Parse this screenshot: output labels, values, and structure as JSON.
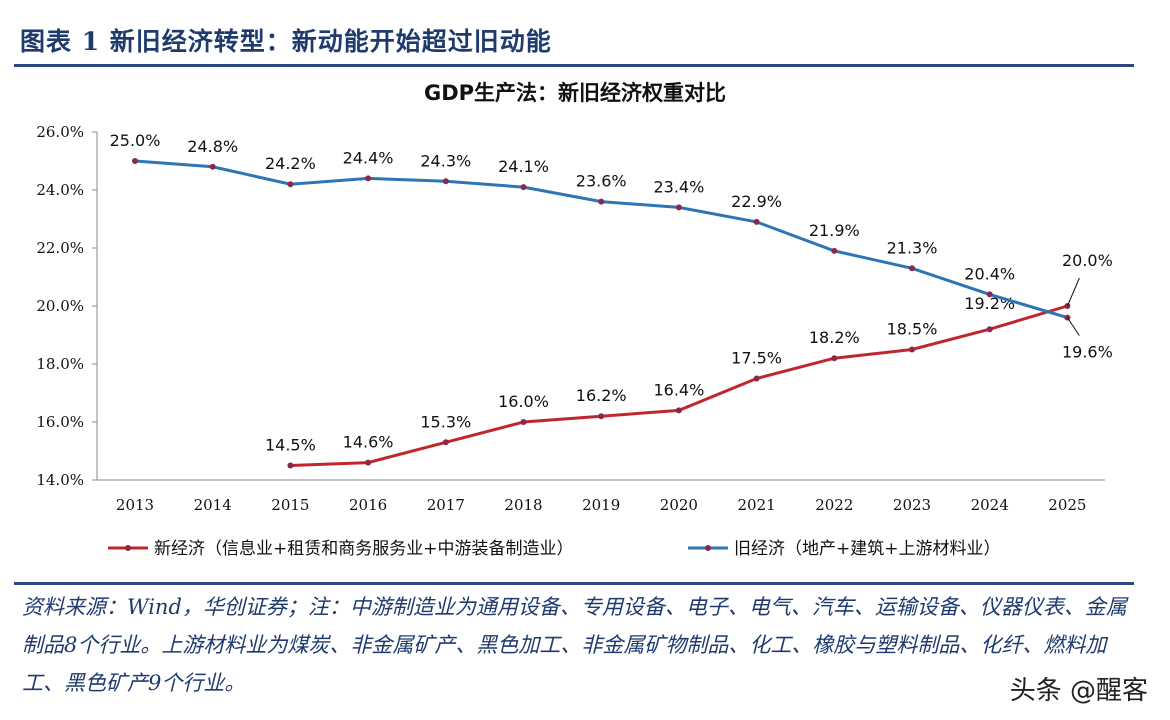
{
  "figure_title": "图表 1   新旧经济转型：新动能开始超过旧动能",
  "chart_data": {
    "type": "line",
    "title": "GDP生产法：新旧经济权重对比",
    "x": [
      "2013",
      "2014",
      "2015",
      "2016",
      "2017",
      "2018",
      "2019",
      "2020",
      "2021",
      "2022",
      "2023",
      "2024",
      "2025"
    ],
    "ylim": [
      14.0,
      26.0
    ],
    "yticks": [
      "14.0%",
      "16.0%",
      "18.0%",
      "20.0%",
      "22.0%",
      "24.0%",
      "26.0%"
    ],
    "grid": false,
    "legend_position": "bottom",
    "series": [
      {
        "name": "新经济（信息业+租赁和商务服务业+中游装备制造业）",
        "color": "#c0272d",
        "values": [
          null,
          null,
          14.5,
          14.6,
          15.3,
          16.0,
          16.2,
          16.4,
          17.5,
          18.2,
          18.5,
          19.2,
          20.0
        ],
        "labels": [
          null,
          null,
          "14.5%",
          "14.6%",
          "15.3%",
          "16.0%",
          "16.2%",
          "16.4%",
          "17.5%",
          "18.2%",
          "18.5%",
          "19.2%",
          "20.0%"
        ]
      },
      {
        "name": "旧经济（地产+建筑+上游材料业）",
        "color": "#2e75b6",
        "values": [
          25.0,
          24.8,
          24.2,
          24.4,
          24.3,
          24.1,
          23.6,
          23.4,
          22.9,
          21.9,
          21.3,
          20.4,
          19.6
        ],
        "labels": [
          "25.0%",
          "24.8%",
          "24.2%",
          "24.4%",
          "24.3%",
          "24.1%",
          "23.6%",
          "23.4%",
          "22.9%",
          "21.9%",
          "21.3%",
          "20.4%",
          "19.6%"
        ]
      }
    ]
  },
  "note": "资料来源：Wind，华创证券；注：中游制造业为通用设备、专用设备、电子、电气、汽车、运输设备、仪器仪表、金属制品8个行业。上游材料业为煤炭、非金属矿产、黑色加工、非金属矿物制品、化工、橡胶与塑料制品、化纤、燃料加工、黑色矿产9个行业。",
  "watermark": "头条 @醒客"
}
